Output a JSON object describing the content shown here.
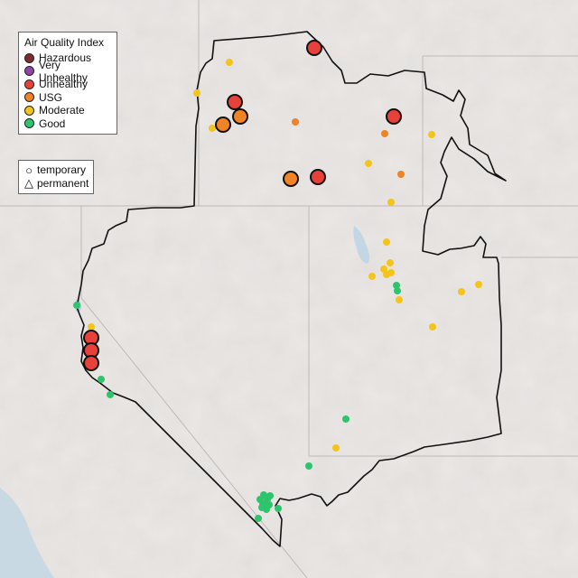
{
  "legend": {
    "title": "Air Quality Index",
    "categories": [
      {
        "label": "Hazardous",
        "color": "#7e2c31"
      },
      {
        "label": "Very Unhealthy",
        "color": "#8f46a8"
      },
      {
        "label": "Unhealthy",
        "color": "#e8413a"
      },
      {
        "label": "USG",
        "color": "#ef8326"
      },
      {
        "label": "Moderate",
        "color": "#f3c41c"
      },
      {
        "label": "Good",
        "color": "#2ec46c"
      }
    ]
  },
  "shape_legend": {
    "temporary": "temporary",
    "permanent": "permanent"
  },
  "monitors": [
    {
      "cat": "Unhealthy",
      "type": "temporary",
      "major": true
    },
    {
      "cat": "Unhealthy",
      "type": "temporary",
      "major": true
    },
    {
      "cat": "Unhealthy",
      "type": "temporary",
      "major": true
    },
    {
      "cat": "Unhealthy",
      "type": "temporary",
      "major": true
    },
    {
      "cat": "Unhealthy",
      "type": "temporary",
      "major": true
    },
    {
      "cat": "Unhealthy",
      "type": "temporary",
      "major": true
    },
    {
      "cat": "Unhealthy",
      "type": "temporary",
      "major": true
    },
    {
      "cat": "USG",
      "type": "temporary",
      "major": true
    },
    {
      "cat": "USG",
      "type": "temporary",
      "major": true
    },
    {
      "cat": "USG",
      "type": "temporary",
      "major": true
    },
    {
      "cat": "USG",
      "type": "permanent",
      "major": false
    },
    {
      "cat": "USG",
      "type": "permanent",
      "major": false
    },
    {
      "cat": "USG",
      "type": "permanent",
      "major": false
    },
    {
      "cat": "Moderate",
      "type": "permanent",
      "major": false
    },
    {
      "cat": "Good",
      "type": "permanent",
      "major": false
    }
  ]
}
